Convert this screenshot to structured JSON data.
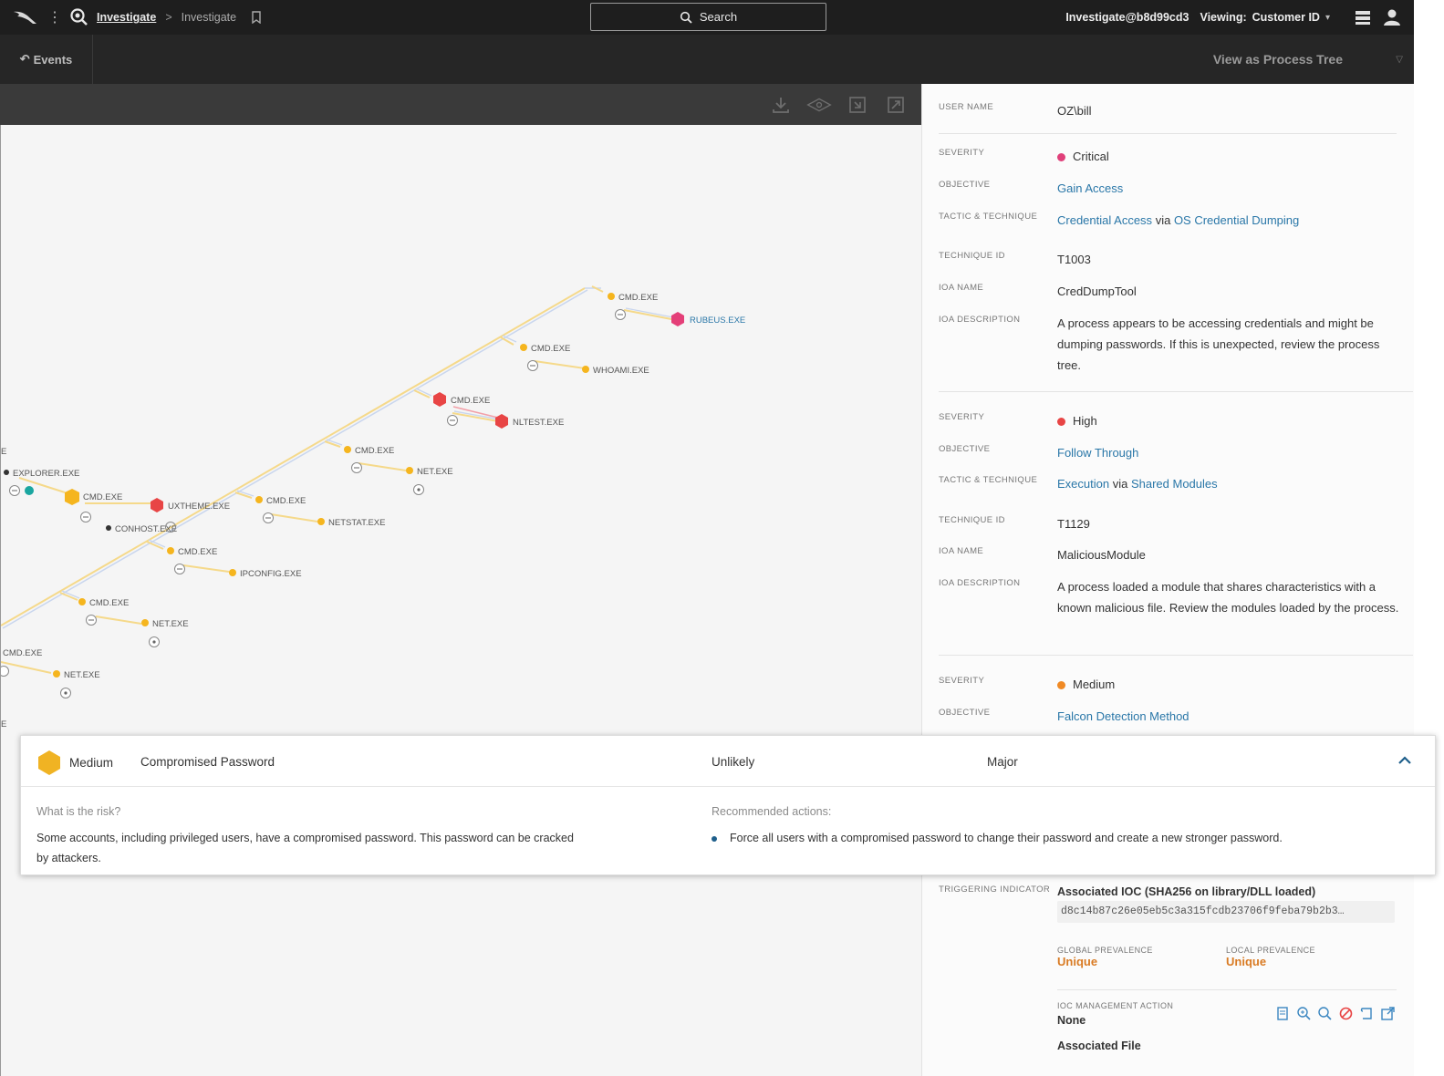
{
  "topbar": {
    "breadcrumb_link": "Investigate",
    "breadcrumb_sep": ">",
    "breadcrumb_current": "Investigate",
    "search_label": "Search",
    "user": "Investigate@b8d99cd3",
    "viewing_label": "Viewing:",
    "viewing_value": "Customer ID"
  },
  "subbar": {
    "events_label": "Events",
    "process_tree_label": "View as Process Tree"
  },
  "graph": {
    "nodes": {
      "cmd1": "CMD.EXE",
      "rubeus": "RUBEUS.EXE",
      "cmd2": "CMD.EXE",
      "whoami": "WHOAMI.EXE",
      "cmd3": "CMD.EXE",
      "nltest": "NLTEST.EXE",
      "cmd4": "CMD.EXE",
      "net1": "NET.EXE",
      "explorer": "EXPLORER.EXE",
      "cmd5": "CMD.EXE",
      "uxtheme": "UXTHEME.EXE",
      "conhost": "CONHOST.EXE",
      "cmd6": "CMD.EXE",
      "netstat": "NETSTAT.EXE",
      "cmd7": "CMD.EXE",
      "ipconfig": "IPCONFIG.EXE",
      "cmd8": "CMD.EXE",
      "net2": "NET.EXE",
      "cmd9": "CMD.EXE",
      "net3": "NET.EXE",
      "edge_e": "E",
      "edge_e2": "E"
    }
  },
  "detail": {
    "user_name_label": "USER NAME",
    "user_name": "OZ\\bill",
    "d1": {
      "severity_label": "SEVERITY",
      "severity": "Critical",
      "severity_color": "#e0407a",
      "objective_label": "OBJECTIVE",
      "objective": "Gain Access",
      "tactic_label": "TACTIC & TECHNIQUE",
      "tactic": "Credential Access",
      "via": "via",
      "technique": "OS Credential Dumping",
      "tid_label": "TECHNIQUE ID",
      "tid": "T1003",
      "ioa_name_label": "IOA NAME",
      "ioa_name": "CredDumpTool",
      "ioa_desc_label": "IOA DESCRIPTION",
      "ioa_desc": "A process appears to be accessing credentials and might be dumping passwords. If this is unexpected, review the process tree."
    },
    "d2": {
      "severity_label": "SEVERITY",
      "severity": "High",
      "severity_color": "#e84545",
      "objective_label": "OBJECTIVE",
      "objective": "Follow Through",
      "tactic_label": "TACTIC & TECHNIQUE",
      "tactic": "Execution",
      "via": "via",
      "technique": "Shared Modules",
      "tid_label": "TECHNIQUE ID",
      "tid": "T1129",
      "ioa_name_label": "IOA NAME",
      "ioa_name": "MaliciousModule",
      "ioa_desc_label": "IOA DESCRIPTION",
      "ioa_desc": "A process loaded a module that shares characteristics with a known malicious file. Review the modules loaded by the process."
    },
    "d3": {
      "severity_label": "SEVERITY",
      "severity": "Medium",
      "severity_color": "#f08a24",
      "objective_label": "OBJECTIVE",
      "objective": "Falcon Detection Method"
    },
    "triggering_label": "TRIGGERING INDICATOR",
    "triggering_title": "Associated IOC (SHA256 on library/DLL loaded)",
    "hash": "d8c14b87c26e05eb5c3a315fcdb23706f9feba79b2b3…",
    "global_prev_label": "GLOBAL PREVALENCE",
    "global_prev": "Unique",
    "local_prev_label": "LOCAL PREVALENCE",
    "local_prev": "Unique",
    "ioc_action_label": "IOC MANAGEMENT ACTION",
    "ioc_action": "None",
    "associated_file": "Associated File"
  },
  "card": {
    "severity": "Medium",
    "severity_color": "#f0b323",
    "name": "Compromised Password",
    "likelihood": "Unlikely",
    "impact": "Major",
    "risk_label": "What is the risk?",
    "risk_text": "Some accounts, including privileged users, have a compromised password. This password can be cracked by attackers.",
    "rec_label": "Recommended actions:",
    "rec_items": [
      "Force all users with a compromised password to change their password and create a new stronger password."
    ]
  },
  "icons": {
    "logo": "falcon-logo-icon",
    "search": "search-icon",
    "user": "user-icon",
    "collapse": "chevron-up-icon"
  }
}
